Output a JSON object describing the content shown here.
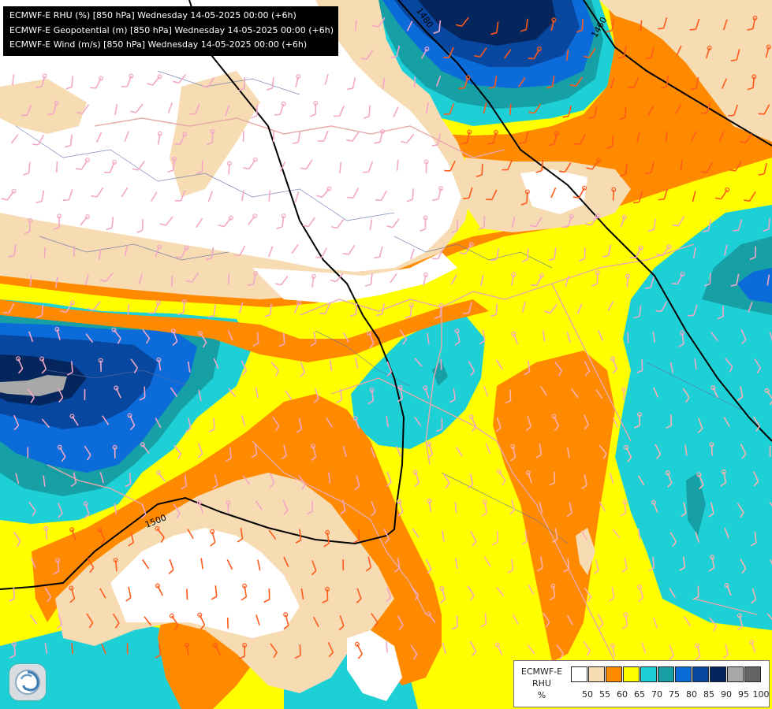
{
  "header": {
    "lines": [
      "ECMWF-E RHU (%) [850 hPa] Wednesday 14-05-2025 00:00 (+6h)",
      "ECMWF-E Geopotential (m) [850 hPa] Wednesday 14-05-2025 00:00 (+6h)",
      "ECMWF-E Wind (m/s) [850 hPa] Wednesday 14-05-2025 00:00 (+6h)"
    ]
  },
  "contours": [
    {
      "label": "1480"
    },
    {
      "label": "1460"
    },
    {
      "label": "1500"
    }
  ],
  "legend": {
    "title": [
      "ECMWF-E",
      "RHU",
      "%"
    ],
    "bins": [
      {
        "color": "#ffffff",
        "label": "50"
      },
      {
        "color": "#f6dbb3",
        "label": "55"
      },
      {
        "color": "#ff8a00",
        "label": "60"
      },
      {
        "color": "#ffff00",
        "label": "65"
      },
      {
        "color": "#1dd0d6",
        "label": "70"
      },
      {
        "color": "#169fa5",
        "label": "75"
      },
      {
        "color": "#0a6bd9",
        "label": "80"
      },
      {
        "color": "#0847a0",
        "label": "85"
      },
      {
        "color": "#04265c",
        "label": "90"
      },
      {
        "color": "#a8a8a8",
        "label": "95"
      },
      {
        "color": "#646464",
        "label": "100"
      }
    ]
  },
  "logo": {
    "icon": "ecmwf-swirl-icon"
  }
}
